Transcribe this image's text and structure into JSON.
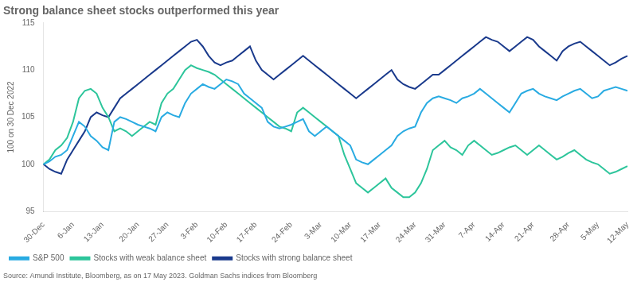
{
  "chart_data": {
    "type": "line",
    "title": "Strong balance sheet stocks outperformed this year",
    "ylabel": "100 on 30 Dec 2022",
    "source": "Source: Amundi Institute, Bloomberg, as on 17 May 2023. Goldman Sachs indices from Bloomberg",
    "categories": [
      "30-Dec",
      null,
      null,
      null,
      null,
      "6-Jan",
      null,
      null,
      null,
      null,
      "13-Jan",
      null,
      null,
      null,
      null,
      null,
      "20-Jan",
      null,
      null,
      null,
      null,
      "27-Jan",
      null,
      null,
      null,
      null,
      "3-Feb",
      null,
      null,
      null,
      null,
      "10-Feb",
      null,
      null,
      null,
      null,
      "17-Feb",
      null,
      null,
      null,
      null,
      null,
      "24-Feb",
      null,
      null,
      null,
      null,
      "3-Mar",
      null,
      null,
      null,
      null,
      "10-Mar",
      null,
      null,
      null,
      null,
      "17-Mar",
      null,
      null,
      null,
      null,
      null,
      "24-Mar",
      null,
      null,
      null,
      null,
      "31-Mar",
      null,
      null,
      null,
      null,
      "7-Apr",
      null,
      null,
      null,
      null,
      "14-Apr",
      null,
      null,
      null,
      null,
      "21-Apr",
      null,
      null,
      null,
      null,
      null,
      "28-Apr",
      null,
      null,
      null,
      null,
      "5-May",
      null,
      null,
      null,
      null,
      "12-May"
    ],
    "series": [
      {
        "name": "S&P 500",
        "color": "#29abe2",
        "values": [
          100.0,
          100.3,
          100.8,
          101.0,
          101.5,
          103.0,
          104.5,
          104.0,
          103.0,
          102.5,
          101.8,
          101.5,
          104.5,
          105.0,
          104.8,
          104.5,
          104.2,
          104.0,
          103.8,
          103.5,
          105.0,
          105.5,
          105.2,
          105.0,
          106.5,
          107.5,
          108.0,
          108.5,
          108.2,
          108.0,
          108.5,
          109.0,
          108.8,
          108.5,
          107.5,
          107.0,
          106.5,
          106.0,
          104.5,
          104.0,
          103.8,
          104.0,
          104.2,
          104.5,
          104.8,
          103.5,
          103.0,
          103.5,
          104.0,
          103.5,
          103.0,
          102.5,
          102.0,
          100.5,
          100.2,
          100.0,
          100.5,
          101.0,
          101.5,
          102.0,
          103.0,
          103.5,
          103.8,
          104.0,
          105.5,
          106.5,
          107.0,
          107.2,
          107.0,
          106.8,
          106.5,
          107.0,
          107.2,
          107.5,
          108.0,
          107.5,
          107.0,
          106.5,
          106.0,
          105.5,
          106.5,
          107.5,
          107.8,
          108.0,
          107.5,
          107.2,
          107.0,
          106.8,
          107.2,
          107.5,
          107.8,
          108.0,
          107.5,
          107.0,
          107.2,
          107.8,
          108.0,
          108.2,
          108.0,
          107.8
        ]
      },
      {
        "name": "Stocks with weak balance sheet",
        "color": "#2dc59b",
        "values": [
          100.0,
          100.5,
          101.5,
          102.0,
          102.8,
          104.5,
          107.0,
          107.8,
          108.0,
          107.5,
          106.0,
          105.0,
          103.5,
          103.8,
          103.5,
          103.0,
          103.5,
          104.0,
          104.5,
          104.2,
          106.5,
          107.5,
          108.0,
          109.0,
          110.0,
          110.5,
          110.2,
          110.0,
          109.8,
          109.5,
          109.0,
          108.5,
          108.0,
          107.5,
          107.0,
          106.5,
          106.0,
          105.5,
          105.0,
          104.5,
          104.0,
          103.8,
          103.5,
          105.5,
          106.0,
          105.5,
          105.0,
          104.5,
          104.0,
          103.5,
          103.0,
          101.0,
          99.5,
          98.0,
          97.5,
          97.0,
          97.5,
          98.0,
          98.5,
          97.5,
          97.0,
          96.5,
          96.5,
          97.0,
          98.0,
          99.5,
          101.5,
          102.0,
          102.5,
          101.8,
          101.5,
          101.0,
          102.0,
          102.5,
          102.0,
          101.5,
          101.0,
          101.2,
          101.5,
          101.8,
          102.0,
          101.5,
          101.0,
          101.5,
          102.0,
          101.5,
          101.0,
          100.5,
          100.8,
          101.2,
          101.5,
          101.0,
          100.5,
          100.2,
          100.0,
          99.5,
          99.0,
          99.2,
          99.5,
          99.8
        ]
      },
      {
        "name": "Stocks with strong balance sheet",
        "color": "#1a3a8c",
        "values": [
          100.0,
          99.5,
          99.2,
          99.0,
          100.5,
          101.5,
          102.5,
          103.5,
          105.0,
          105.5,
          105.2,
          105.0,
          106.0,
          107.0,
          107.5,
          108.0,
          108.5,
          109.0,
          109.5,
          110.0,
          110.5,
          111.0,
          111.5,
          112.0,
          112.5,
          113.0,
          113.2,
          112.5,
          111.5,
          110.8,
          110.5,
          110.8,
          111.0,
          111.5,
          112.0,
          112.5,
          111.0,
          110.0,
          109.5,
          109.0,
          109.5,
          110.0,
          110.5,
          111.0,
          111.5,
          111.0,
          110.5,
          110.0,
          109.5,
          109.0,
          108.5,
          108.0,
          107.5,
          107.0,
          107.5,
          108.0,
          108.5,
          109.0,
          109.5,
          110.0,
          109.0,
          108.5,
          108.2,
          108.0,
          108.5,
          109.0,
          109.5,
          109.5,
          110.0,
          110.5,
          111.0,
          111.5,
          112.0,
          112.5,
          113.0,
          113.5,
          113.2,
          113.0,
          112.5,
          112.0,
          112.5,
          113.0,
          113.5,
          113.2,
          112.5,
          112.0,
          111.5,
          111.0,
          112.0,
          112.5,
          112.8,
          113.0,
          112.5,
          112.0,
          111.5,
          111.0,
          110.5,
          110.8,
          111.2,
          111.5
        ]
      }
    ],
    "ylim": [
      95,
      115
    ],
    "yticks": [
      95,
      100,
      105,
      110,
      115
    ],
    "grid": false,
    "legend": "bottom"
  }
}
